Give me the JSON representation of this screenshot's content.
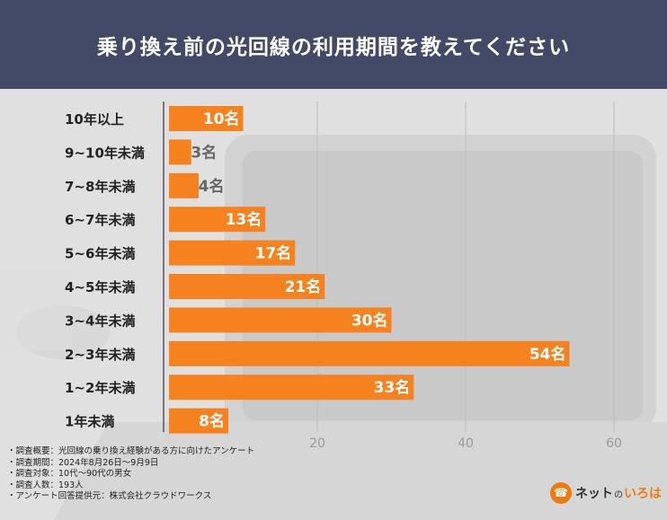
{
  "title": "乗り換え前の光回線の利用期間を教えてください",
  "colors": {
    "header_bg": "#424a68",
    "bar": "#f5821f",
    "label_inside": "#ffffff",
    "label_outside": "#666666",
    "accent": "#ee7a12"
  },
  "chart_data": {
    "type": "bar",
    "orientation": "horizontal",
    "title": "乗り換え前の光回線の利用期間を教えてください",
    "categories": [
      "10年以上",
      "9~10年未満",
      "7~8年未満",
      "6~7年未満",
      "5~6年未満",
      "4~5年未満",
      "3~4年未満",
      "2~3年未満",
      "1~2年未満",
      "1年未満"
    ],
    "values": [
      10,
      3,
      4,
      13,
      17,
      21,
      30,
      54,
      33,
      8
    ],
    "value_suffix": "名",
    "xlim": [
      0,
      60
    ],
    "xticks": [
      20,
      40,
      60
    ],
    "xticks_labels": [
      "20",
      "40",
      "60"
    ],
    "xlabel": "",
    "ylabel": "",
    "grid": true
  },
  "notes": [
    "・調査概要：光回線の乗り換え経験がある方に向けたアンケート",
    "・調査期間：2024年8月26日～9月9日",
    "・調査対象：10代～90代の男女",
    "・調査人数：193人",
    "・アンケート回答提供元：株式会社クラウドワークス"
  ],
  "logo": {
    "badge_glyph": "☎",
    "prefix": "ネット",
    "particle": "の",
    "brand": "いろは"
  }
}
